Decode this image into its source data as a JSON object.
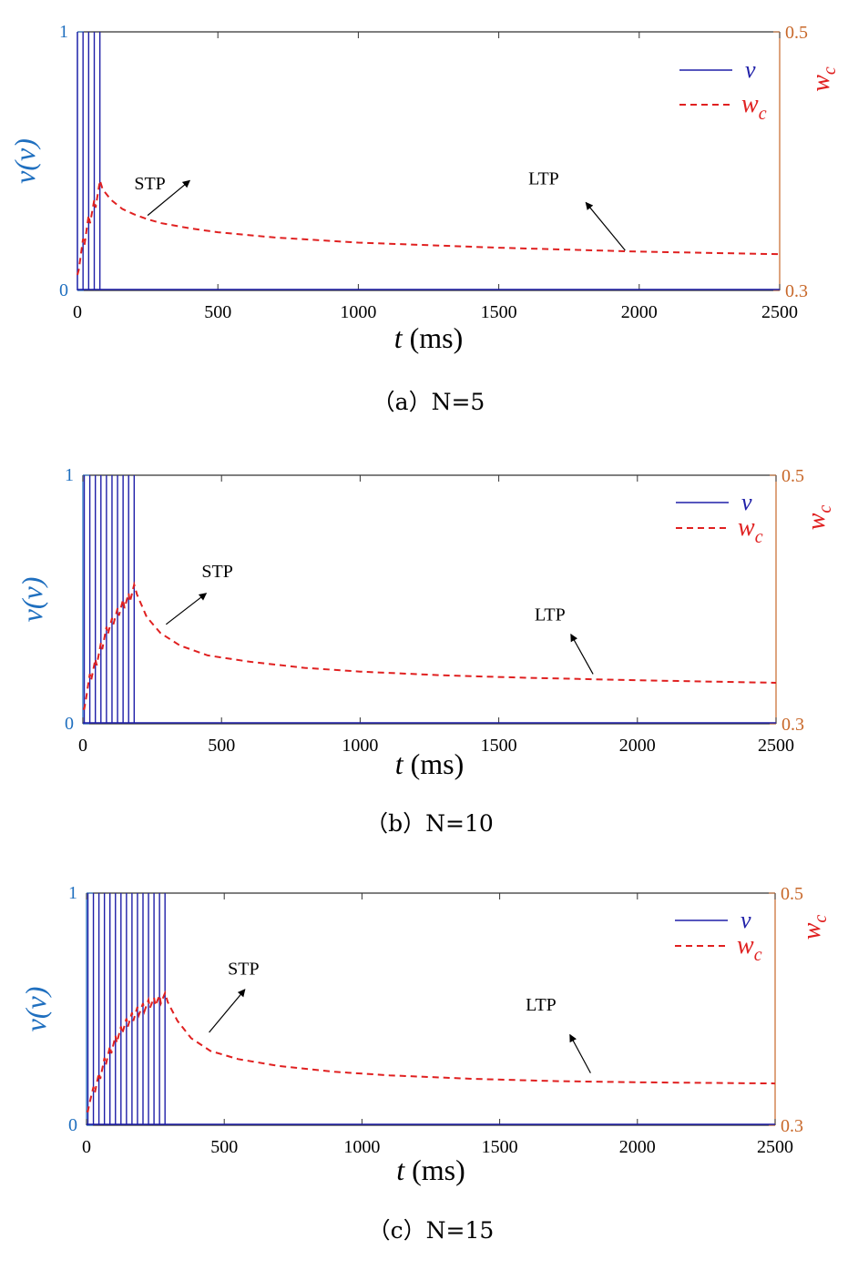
{
  "colors": {
    "v": "#1f1fa8",
    "wc": "#e02020",
    "left_axis": "#1f6fbf",
    "right_axis": "#c8682a"
  },
  "chart_data": [
    {
      "type": "line",
      "caption": "（a）N=5",
      "N": 5,
      "xlabel_italic": "t",
      "xlabel_unit": " (ms)",
      "ylabel_left": "v(v)",
      "ylabel_right": "w",
      "ylabel_right_sub": "c",
      "xlim": [
        0,
        2500
      ],
      "ylim_left": [
        0,
        1
      ],
      "ylim_right": [
        0.3,
        0.5
      ],
      "xticks": [
        0,
        500,
        1000,
        1500,
        2000,
        2500
      ],
      "yticks_left": [
        0,
        1
      ],
      "yticks_right": [
        0.3,
        0.5
      ],
      "legend_position": "top-right",
      "series": [
        {
          "name": "v",
          "style": "solid",
          "axis": "left",
          "spike_times": [
            0,
            20,
            40,
            60,
            80
          ]
        },
        {
          "name": "w",
          "name_sub": "c",
          "style": "dashed",
          "axis": "right",
          "x": [
            0,
            5,
            20,
            25,
            40,
            45,
            60,
            65,
            80,
            90,
            120,
            160,
            200,
            250,
            300,
            400,
            500,
            700,
            1000,
            1500,
            2000,
            2500
          ],
          "y": [
            0.312,
            0.316,
            0.34,
            0.335,
            0.358,
            0.352,
            0.37,
            0.364,
            0.385,
            0.378,
            0.37,
            0.363,
            0.359,
            0.355,
            0.352,
            0.348,
            0.345,
            0.341,
            0.337,
            0.333,
            0.33,
            0.328
          ]
        }
      ],
      "annotations": [
        {
          "text": "STP",
          "at": [
            258,
            0.378
          ],
          "arrow_from": [
            250,
            0.358
          ],
          "arrow_to": [
            400,
            0.385
          ]
        },
        {
          "text": "LTP",
          "at": [
            1660,
            0.382
          ],
          "arrow_from": [
            1950,
            0.331
          ],
          "arrow_to": [
            1810,
            0.368
          ]
        }
      ]
    },
    {
      "type": "line",
      "caption": "（b）N=10",
      "N": 10,
      "xlabel_italic": "t",
      "xlabel_unit": " (ms)",
      "ylabel_left": "v(v)",
      "ylabel_right": "w",
      "ylabel_right_sub": "c",
      "xlim": [
        0,
        2500
      ],
      "ylim_left": [
        0,
        1
      ],
      "ylim_right": [
        0.3,
        0.5
      ],
      "xticks": [
        0,
        500,
        1000,
        1500,
        2000,
        2500
      ],
      "yticks_left": [
        0,
        1
      ],
      "yticks_right": [
        0.3,
        0.5
      ],
      "legend_position": "top-right",
      "series": [
        {
          "name": "v",
          "style": "solid",
          "axis": "left",
          "spike_times": [
            5,
            25,
            45,
            65,
            85,
            105,
            125,
            145,
            165,
            185
          ]
        },
        {
          "name": "w",
          "name_sub": "c",
          "style": "dashed",
          "axis": "right",
          "x": [
            0,
            5,
            10,
            25,
            30,
            45,
            50,
            65,
            70,
            85,
            90,
            105,
            110,
            125,
            130,
            145,
            150,
            165,
            170,
            185,
            195,
            230,
            280,
            350,
            450,
            600,
            800,
            1000,
            1300,
            1600,
            2000,
            2500
          ],
          "y": [
            0.312,
            0.312,
            0.318,
            0.34,
            0.335,
            0.352,
            0.347,
            0.365,
            0.36,
            0.378,
            0.372,
            0.385,
            0.38,
            0.393,
            0.387,
            0.4,
            0.393,
            0.405,
            0.398,
            0.412,
            0.404,
            0.386,
            0.373,
            0.363,
            0.355,
            0.35,
            0.345,
            0.342,
            0.339,
            0.337,
            0.335,
            0.333
          ]
        }
      ],
      "annotations": [
        {
          "text": "STP",
          "at": [
            485,
            0.418
          ],
          "arrow_from": [
            300,
            0.38
          ],
          "arrow_to": [
            445,
            0.405
          ]
        },
        {
          "text": "LTP",
          "at": [
            1685,
            0.383
          ],
          "arrow_from": [
            1840,
            0.34
          ],
          "arrow_to": [
            1760,
            0.372
          ]
        }
      ]
    },
    {
      "type": "line",
      "caption": "（c）N=15",
      "N": 15,
      "xlabel_italic": "t",
      "xlabel_unit": " (ms)",
      "ylabel_left": "v(v)",
      "ylabel_right": "w",
      "ylabel_right_sub": "c",
      "xlim": [
        0,
        2500
      ],
      "ylim_left": [
        0,
        1
      ],
      "ylim_right": [
        0.3,
        0.5
      ],
      "xticks": [
        0,
        500,
        1000,
        1500,
        2000,
        2500
      ],
      "yticks_left": [
        0,
        1
      ],
      "yticks_right": [
        0.3,
        0.5
      ],
      "legend_position": "top-right",
      "series": [
        {
          "name": "v",
          "style": "solid",
          "axis": "left",
          "spike_times": [
            5,
            25,
            45,
            65,
            85,
            105,
            125,
            145,
            165,
            185,
            205,
            225,
            245,
            265,
            285
          ]
        },
        {
          "name": "w",
          "name_sub": "c",
          "style": "dashed",
          "axis": "right",
          "x": [
            0,
            5,
            10,
            25,
            30,
            45,
            50,
            65,
            70,
            85,
            90,
            105,
            110,
            125,
            130,
            145,
            150,
            165,
            170,
            185,
            190,
            205,
            210,
            225,
            230,
            245,
            250,
            265,
            270,
            285,
            295,
            330,
            380,
            450,
            550,
            700,
            900,
            1100,
            1400,
            1700,
            2000,
            2500
          ],
          "y": [
            0.312,
            0.312,
            0.318,
            0.333,
            0.328,
            0.345,
            0.34,
            0.358,
            0.352,
            0.368,
            0.362,
            0.377,
            0.371,
            0.385,
            0.379,
            0.392,
            0.385,
            0.397,
            0.39,
            0.402,
            0.395,
            0.405,
            0.398,
            0.408,
            0.401,
            0.41,
            0.403,
            0.412,
            0.405,
            0.414,
            0.406,
            0.39,
            0.375,
            0.364,
            0.357,
            0.351,
            0.346,
            0.343,
            0.34,
            0.338,
            0.337,
            0.336
          ]
        }
      ],
      "annotations": [
        {
          "text": "STP",
          "at": [
            570,
            0.43
          ],
          "arrow_from": [
            445,
            0.38
          ],
          "arrow_to": [
            575,
            0.417
          ]
        },
        {
          "text": "LTP",
          "at": [
            1650,
            0.399
          ],
          "arrow_from": [
            1830,
            0.345
          ],
          "arrow_to": [
            1755,
            0.378
          ]
        }
      ]
    }
  ]
}
